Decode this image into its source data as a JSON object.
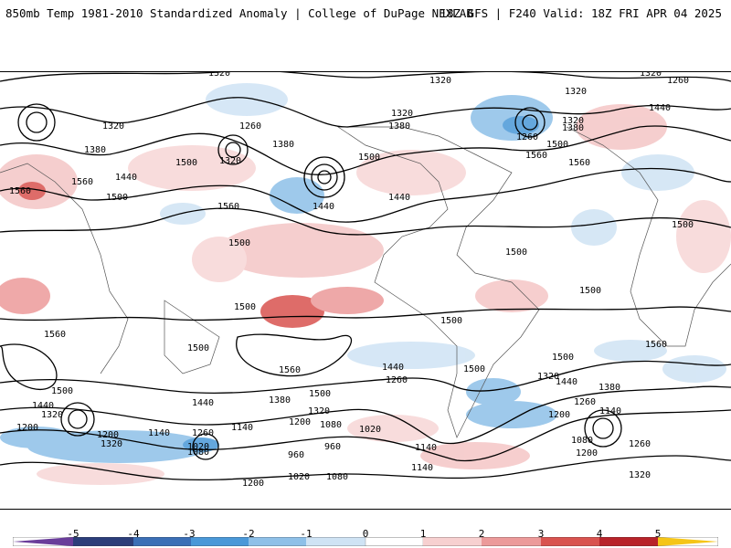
{
  "title": {
    "left": "850mb Temp 1981-2010 Standardized Anomaly | College of DuPage NEXLAB",
    "right": "18Z GFS | F240 Valid: 18Z FRI APR 04 2025"
  },
  "colorbar": {
    "ticks": [
      "-5",
      "-4",
      "-3",
      "-2",
      "-1",
      "0",
      "1",
      "2",
      "3",
      "4",
      "5"
    ],
    "colors": [
      "#6a3d9a",
      "#2c3e7a",
      "#3b6fb6",
      "#4a98d8",
      "#8ec0e8",
      "#cfe3f4",
      "#ffffff",
      "#f7d0d0",
      "#ec9a9a",
      "#d9534f",
      "#b8232a",
      "#8b0e14",
      "#f5c518"
    ]
  },
  "contour_labels": [
    "1320",
    "1260",
    "1380",
    "1440",
    "1500",
    "1560",
    "1200",
    "1140",
    "1080",
    "1020",
    "960"
  ]
}
